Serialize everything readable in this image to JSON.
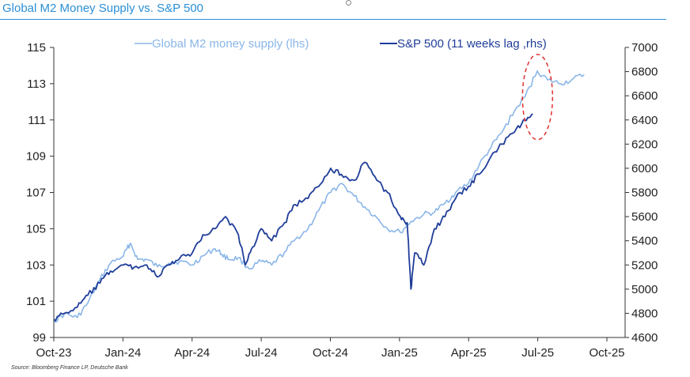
{
  "title": "Global M2 Money Supply vs. S&P 500",
  "source": "Source: Bloomberg Finance LP, Deutsche Bank",
  "chart_data": {
    "type": "line",
    "x_ticks": [
      "Oct-23",
      "Jan-24",
      "Apr-24",
      "Jul-24",
      "Oct-24",
      "Jan-25",
      "Apr-25",
      "Jul-25",
      "Oct-25"
    ],
    "y_left": {
      "ticks": [
        99,
        101,
        103,
        105,
        107,
        109,
        111,
        113,
        115
      ],
      "lim": [
        99,
        115
      ]
    },
    "y_right": {
      "ticks": [
        4600,
        4800,
        5000,
        5200,
        5400,
        5600,
        5800,
        6000,
        6200,
        6400,
        6600,
        6800,
        7000
      ],
      "lim": [
        4600,
        7000
      ]
    },
    "series": [
      {
        "name": "Global M2 money supply (lhs)",
        "axis": "left",
        "color": "#8ab6e8",
        "points": [
          [
            "2023-10-01",
            99.9
          ],
          [
            "2023-10-15",
            100.3
          ],
          [
            "2023-11-01",
            100.1
          ],
          [
            "2023-11-15",
            100.9
          ],
          [
            "2023-12-01",
            102.2
          ],
          [
            "2023-12-15",
            103.1
          ],
          [
            "2024-01-01",
            103.5
          ],
          [
            "2024-01-10",
            104.2
          ],
          [
            "2024-01-20",
            103.3
          ],
          [
            "2024-02-01",
            103.3
          ],
          [
            "2024-02-15",
            102.9
          ],
          [
            "2024-03-01",
            103.1
          ],
          [
            "2024-03-15",
            103.2
          ],
          [
            "2024-04-01",
            103.0
          ],
          [
            "2024-04-15",
            103.5
          ],
          [
            "2024-05-01",
            103.9
          ],
          [
            "2024-05-10",
            103.6
          ],
          [
            "2024-05-20",
            103.3
          ],
          [
            "2024-06-01",
            103.4
          ],
          [
            "2024-06-15",
            102.8
          ],
          [
            "2024-07-01",
            103.2
          ],
          [
            "2024-07-15",
            103.0
          ],
          [
            "2024-08-01",
            103.7
          ],
          [
            "2024-08-15",
            104.4
          ],
          [
            "2024-09-01",
            105.0
          ],
          [
            "2024-09-15",
            106.0
          ],
          [
            "2024-10-01",
            107.0
          ],
          [
            "2024-10-15",
            107.5
          ],
          [
            "2024-11-01",
            106.8
          ],
          [
            "2024-11-15",
            106.2
          ],
          [
            "2024-12-01",
            105.6
          ],
          [
            "2024-12-15",
            105.0
          ],
          [
            "2025-01-01",
            104.8
          ],
          [
            "2025-01-15",
            105.4
          ],
          [
            "2025-02-01",
            105.8
          ],
          [
            "2025-02-15",
            105.9
          ],
          [
            "2025-03-01",
            106.4
          ],
          [
            "2025-03-15",
            107.0
          ],
          [
            "2025-04-01",
            107.5
          ],
          [
            "2025-04-15",
            108.5
          ],
          [
            "2025-05-01",
            109.5
          ],
          [
            "2025-05-15",
            110.3
          ],
          [
            "2025-06-01",
            111.5
          ],
          [
            "2025-06-15",
            112.3
          ],
          [
            "2025-07-01",
            113.7
          ],
          [
            "2025-07-15",
            113.2
          ],
          [
            "2025-08-01",
            113.0
          ],
          [
            "2025-08-15",
            113.2
          ],
          [
            "2025-09-01",
            113.5
          ]
        ]
      },
      {
        "name": "S&P 500 (11 weeks lag ,rhs)",
        "axis": "right",
        "color": "#1f3d99",
        "points": [
          [
            "2023-10-01",
            4750
          ],
          [
            "2023-10-15",
            4800
          ],
          [
            "2023-11-01",
            4850
          ],
          [
            "2023-11-15",
            4950
          ],
          [
            "2023-12-01",
            5050
          ],
          [
            "2023-12-15",
            5150
          ],
          [
            "2024-01-01",
            5200
          ],
          [
            "2024-01-15",
            5180
          ],
          [
            "2024-02-01",
            5200
          ],
          [
            "2024-02-15",
            5100
          ],
          [
            "2024-03-01",
            5200
          ],
          [
            "2024-03-15",
            5250
          ],
          [
            "2024-04-01",
            5300
          ],
          [
            "2024-04-15",
            5450
          ],
          [
            "2024-05-01",
            5500
          ],
          [
            "2024-05-15",
            5600
          ],
          [
            "2024-06-01",
            5450
          ],
          [
            "2024-06-10",
            5200
          ],
          [
            "2024-06-20",
            5350
          ],
          [
            "2024-07-01",
            5500
          ],
          [
            "2024-07-15",
            5400
          ],
          [
            "2024-08-01",
            5550
          ],
          [
            "2024-08-15",
            5700
          ],
          [
            "2024-09-01",
            5750
          ],
          [
            "2024-09-15",
            5850
          ],
          [
            "2024-10-01",
            6000
          ],
          [
            "2024-10-15",
            5950
          ],
          [
            "2024-11-01",
            5900
          ],
          [
            "2024-11-15",
            6050
          ],
          [
            "2024-12-01",
            5900
          ],
          [
            "2024-12-15",
            5800
          ],
          [
            "2025-01-01",
            5600
          ],
          [
            "2025-01-10",
            5550
          ],
          [
            "2025-01-15",
            5000
          ],
          [
            "2025-01-20",
            5300
          ],
          [
            "2025-02-01",
            5200
          ],
          [
            "2025-02-15",
            5500
          ],
          [
            "2025-03-01",
            5600
          ],
          [
            "2025-03-15",
            5750
          ],
          [
            "2025-04-01",
            5850
          ],
          [
            "2025-04-15",
            5950
          ],
          [
            "2025-05-01",
            6100
          ],
          [
            "2025-05-15",
            6200
          ],
          [
            "2025-06-01",
            6300
          ],
          [
            "2025-06-15",
            6400
          ],
          [
            "2025-06-25",
            6450
          ]
        ]
      }
    ],
    "annotation": {
      "type": "dashed-ellipse",
      "color": "#e03030",
      "center": [
        "2025-06-25",
        112.0
      ]
    }
  }
}
